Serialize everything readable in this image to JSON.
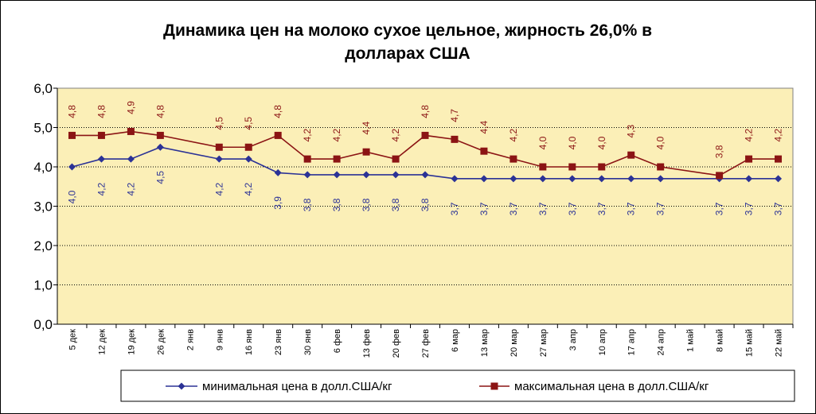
{
  "chart_data": {
    "type": "line",
    "title_lines": [
      "Динамика цен на молоко сухое цельное, жирность 26,0%  в",
      "долларах США"
    ],
    "categories": [
      "5 дек",
      "12 дек",
      "19 дек",
      "26 дек",
      "2 янв",
      "9 янв",
      "16 янв",
      "23 янв",
      "30 янв",
      "6 фев",
      "13 фев",
      "20 фев",
      "27 фев",
      "6 мар",
      "13 мар",
      "20 мар",
      "27 мар",
      "3 апр",
      "10 апр",
      "17 апр",
      "24 апр",
      "1 май",
      "8 май",
      "15 май",
      "22 май"
    ],
    "ylim": [
      0,
      6
    ],
    "yticks": [
      "0,0",
      "1,0",
      "2,0",
      "3,0",
      "4,0",
      "5,0",
      "6,0"
    ],
    "grid": true,
    "legend_position": "bottom",
    "plot_background": "#fbefb7",
    "series": [
      {
        "name": "минимальная цена в долл.США/кг",
        "color": "#2b3296",
        "marker": "diamond",
        "values": [
          4.0,
          4.2,
          4.2,
          4.5,
          null,
          4.2,
          4.2,
          3.85,
          3.8,
          3.8,
          3.8,
          3.8,
          3.8,
          3.7,
          3.7,
          3.7,
          3.7,
          3.7,
          3.7,
          3.7,
          3.7,
          null,
          3.7,
          3.7,
          3.7
        ],
        "labels": [
          "4,0",
          "4,2",
          "4,2",
          "4,5",
          "",
          "4,2",
          "4,2",
          "3,9",
          "3,8",
          "3,8",
          "3,8",
          "3,8",
          "3,8",
          "3,7",
          "3,7",
          "3,7",
          "3,7",
          "3,7",
          "3,7",
          "3,7",
          "3,7",
          "",
          "3,7",
          "3,7",
          "3,7"
        ]
      },
      {
        "name": "максимальная цена в долл.США/кг",
        "color": "#8b1414",
        "marker": "square",
        "values": [
          4.8,
          4.8,
          4.9,
          4.8,
          null,
          4.5,
          4.5,
          4.8,
          4.2,
          4.2,
          4.38,
          4.2,
          4.8,
          4.7,
          4.4,
          4.2,
          4.0,
          4.0,
          4.0,
          4.3,
          4.0,
          null,
          3.78,
          4.2,
          4.2
        ],
        "labels": [
          "4,8",
          "4,8",
          "4,9",
          "4,8",
          "",
          "4,5",
          "4,5",
          "4,8",
          "4,2",
          "4,2",
          "4,4",
          "4,2",
          "4,8",
          "4,7",
          "4,4",
          "4,2",
          "4,0",
          "4,0",
          "4,0",
          "4,3",
          "4,0",
          "",
          "3,8",
          "4,2",
          "4,2"
        ]
      }
    ]
  }
}
